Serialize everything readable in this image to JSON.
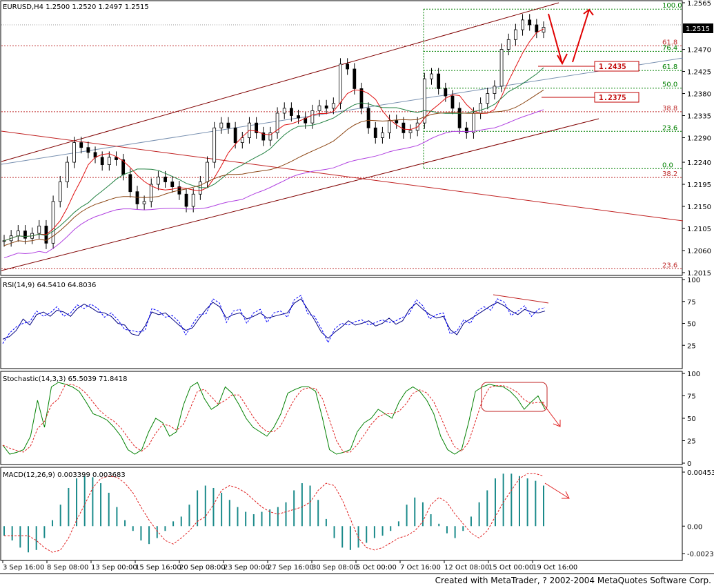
{
  "credit": "Created with MetaTrader, ? 2002-2004 MetaQuotes Software Corp.",
  "chart_data": [
    {
      "type": "candlestick",
      "title": "EURUSD,H4  1.2500 1.2520 1.2497 1.2515",
      "ylim": [
        2015,
        2565
      ],
      "ytick_labels": [
        "1.2565",
        "1.2470",
        "1.2425",
        "1.2380",
        "1.2335",
        "1.2290",
        "1.2240",
        "1.2195",
        "1.2150",
        "1.2105",
        "1.2060",
        "1.2015"
      ],
      "ytick_values": [
        2565,
        2470,
        2425,
        2380,
        2335,
        2290,
        2240,
        2195,
        2150,
        2105,
        2060,
        2015
      ],
      "current_price": "1.2515",
      "current_price_value": 2515,
      "xtick_labels": [
        "3 Sep 16:00",
        "8 Sep 08:00",
        "13 Sep 00:00",
        "15 Sep 16:00",
        "20 Sep 08:00",
        "23 Sep 00:00",
        "27 Sep 16:00",
        "30 Sep 08:00",
        "5 Oct 00:00",
        "7 Oct 16:00",
        "12 Oct 08:00",
        "15 Oct 00:00",
        "19 Oct 16:00"
      ],
      "fib_levels": [
        {
          "label": "100.0",
          "value": 2552
        },
        {
          "label": "61.8",
          "value": 2477
        },
        {
          "label": "76.4",
          "value": 2466
        },
        {
          "label": "61.8",
          "value": 2427
        },
        {
          "label": "50.0",
          "value": 2391
        },
        {
          "label": "38.8",
          "value": 2343
        },
        {
          "label": "23.6",
          "value": 2303
        },
        {
          "label": "0.0",
          "value": 2227
        },
        {
          "label": "38.2",
          "value": 2209
        },
        {
          "label": "23.6",
          "value": 2023
        }
      ],
      "annotations": [
        "1.2435",
        "1.2375"
      ],
      "colors": {
        "up": "#000000",
        "ma_red": "#e01010",
        "ma_green": "#208040",
        "ma_brown": "#8b4513",
        "ma_violet": "#b040e0",
        "channel": "#800000",
        "trend": "#4060a0",
        "fib": "#008000"
      }
    },
    {
      "type": "line",
      "title": "RSI(14,9) 64.5410 64.8036",
      "ylim": [
        0,
        100
      ],
      "ytick_labels": [
        "100",
        "75",
        "50",
        "25"
      ],
      "ytick_values": [
        100,
        75,
        50,
        25
      ],
      "series": [
        {
          "values": [
            32,
            35,
            42,
            55,
            48,
            60,
            63,
            58,
            65,
            63,
            58,
            67,
            72,
            68,
            63,
            62,
            58,
            50,
            48,
            38,
            36,
            47,
            63,
            60,
            62,
            55,
            48,
            42,
            45,
            56,
            66,
            74,
            69,
            56,
            60,
            62,
            55,
            58,
            62,
            56,
            58,
            60,
            62,
            73,
            78,
            66,
            54,
            40,
            33,
            40,
            46,
            53,
            48,
            50,
            53,
            47,
            50,
            56,
            49,
            53,
            66,
            73,
            66,
            60,
            56,
            58,
            43,
            37,
            50,
            55,
            60,
            65,
            70,
            74,
            70,
            64,
            60,
            66,
            63,
            62,
            64
          ]
        }
      ]
    },
    {
      "type": "line",
      "title": "Stochastic(14,3,3) 65.5039 71.8418",
      "ylim": [
        0,
        100
      ],
      "ytick_labels": [
        "100",
        "75",
        "50",
        "25",
        "0"
      ],
      "ytick_values": [
        100,
        75,
        50,
        25,
        0
      ],
      "series": [
        {
          "values": [
            20,
            10,
            12,
            15,
            30,
            70,
            40,
            85,
            90,
            88,
            85,
            80,
            68,
            55,
            52,
            48,
            40,
            30,
            15,
            10,
            15,
            35,
            50,
            45,
            30,
            35,
            65,
            85,
            90,
            72,
            60,
            65,
            85,
            78,
            65,
            50,
            40,
            35,
            30,
            40,
            55,
            78,
            82,
            85,
            85,
            80,
            50,
            15,
            10,
            12,
            15,
            35,
            45,
            50,
            60,
            55,
            50,
            68,
            80,
            85,
            80,
            70,
            55,
            30,
            15,
            10,
            15,
            45,
            80,
            85,
            88,
            86,
            85,
            80,
            72,
            60,
            68,
            75,
            60
          ]
        }
      ]
    },
    {
      "type": "bar",
      "title": "MACD(12,26,9) 0.003399 0.003683",
      "ylim": [
        -0.0023,
        0.00453
      ],
      "ytick_labels": [
        "0.00453",
        "0.00",
        "-0.0023"
      ],
      "ytick_values": [
        0.00453,
        0.0,
        -0.0023
      ],
      "series": [
        {
          "values": [
            -0.0008,
            -0.0012,
            -0.0018,
            -0.0022,
            -0.002,
            -0.001,
            0.0005,
            0.0018,
            0.0032,
            0.004,
            0.0042,
            0.0041,
            0.0036,
            0.0028,
            0.0016,
            0.0005,
            -0.0004,
            -0.0012,
            -0.0015,
            -0.001,
            -0.0004,
            0.0004,
            0.0008,
            0.0018,
            0.003,
            0.0034,
            0.0032,
            0.0028,
            0.0022,
            0.0016,
            0.0012,
            0.001,
            0.0012,
            0.0014,
            0.0016,
            0.002,
            0.003,
            0.0036,
            0.0034,
            0.0022,
            0.0006,
            -0.001,
            -0.0018,
            -0.002,
            -0.0018,
            -0.0014,
            -0.001,
            -0.0008,
            -0.0004,
            0.0004,
            0.0018,
            0.0024,
            0.002,
            0.001,
            0.0002,
            -0.0006,
            -0.001,
            -0.0004,
            0.0008,
            0.002,
            0.003,
            0.004,
            0.0044,
            0.0044,
            0.0042,
            0.004,
            0.0038,
            0.0034
          ]
        }
      ]
    }
  ]
}
